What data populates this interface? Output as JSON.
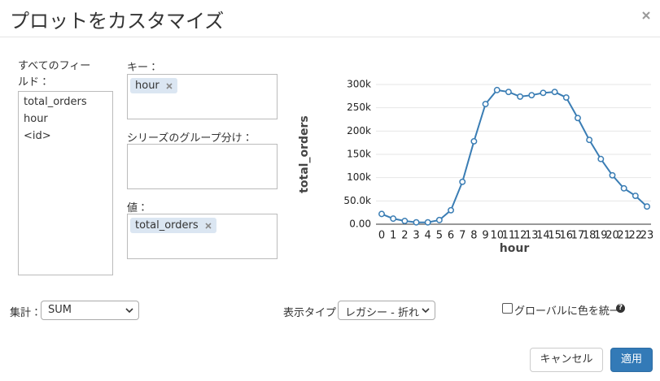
{
  "dialog": {
    "title": "プロットをカスタマイズ"
  },
  "fields": {
    "label": "すべてのフィールド：",
    "items": [
      "total_orders",
      "hour",
      "<id>"
    ]
  },
  "keys": {
    "label": "キー：",
    "tags": [
      "hour"
    ]
  },
  "series_group": {
    "label": "シリーズのグループ分け："
  },
  "values_box": {
    "label": "値：",
    "tags": [
      "total_orders"
    ]
  },
  "aggregate": {
    "label": "集計：",
    "selected": "SUM"
  },
  "display_type": {
    "label": "表示タイプ：",
    "selected": "レガシー - 折れ"
  },
  "global_color": {
    "label": "グローバルに色を統一",
    "help": "?"
  },
  "buttons": {
    "cancel": "キャンセル",
    "apply": "適用"
  },
  "chart_data": {
    "type": "line",
    "x_label": "hour",
    "y_label": "total_orders",
    "categories": [
      "0",
      "1",
      "2",
      "3",
      "4",
      "5",
      "6",
      "7",
      "8",
      "9",
      "10",
      "11",
      "12",
      "13",
      "14",
      "15",
      "16",
      "17",
      "18",
      "19",
      "20",
      "21",
      "22",
      "23"
    ],
    "series": [
      {
        "name": "total_orders",
        "color": "#3a7db4",
        "values": [
          22000,
          12000,
          7000,
          4000,
          4000,
          9000,
          30000,
          91000,
          178000,
          258000,
          288000,
          284000,
          274000,
          277000,
          282000,
          284000,
          272000,
          228000,
          181000,
          140000,
          105000,
          77000,
          61000,
          38000
        ]
      }
    ],
    "ylim": [
      0,
      300000
    ],
    "yticks": [
      {
        "value": 0,
        "label": "0.00"
      },
      {
        "value": 50000,
        "label": "50.0k"
      },
      {
        "value": 100000,
        "label": "100k"
      },
      {
        "value": 150000,
        "label": "150k"
      },
      {
        "value": 200000,
        "label": "200k"
      },
      {
        "value": 250000,
        "label": "250k"
      },
      {
        "value": 300000,
        "label": "300k"
      }
    ],
    "grid": true
  }
}
